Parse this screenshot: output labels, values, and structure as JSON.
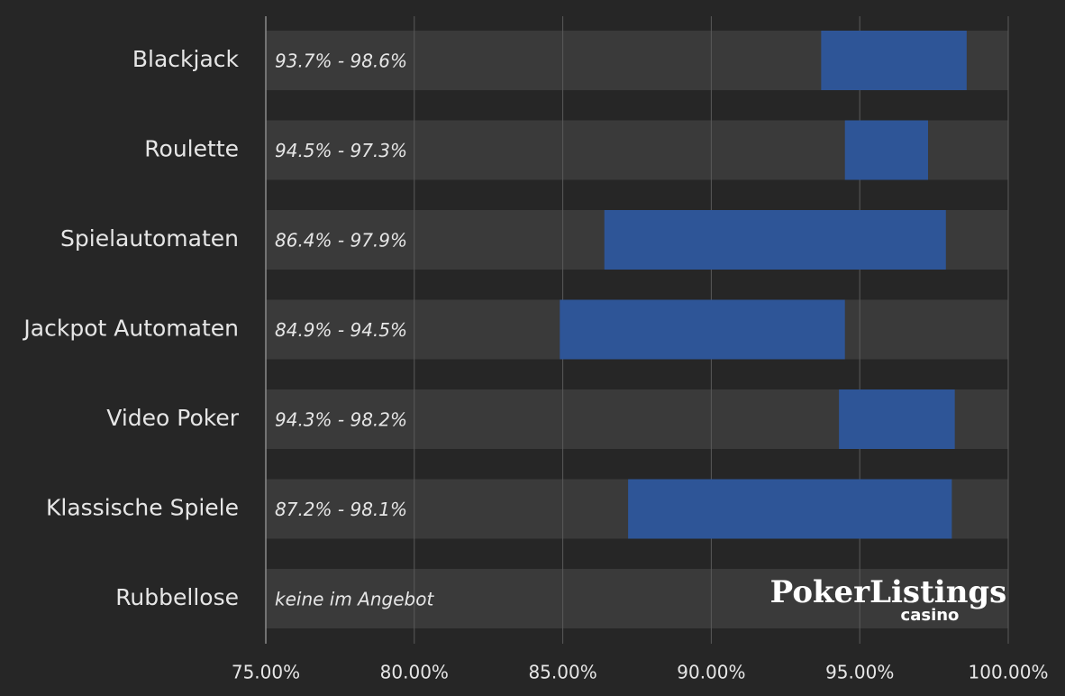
{
  "chart_data": {
    "type": "range-bar",
    "categories": [
      "Blackjack",
      "Roulette",
      "Spielautomaten",
      "Jackpot Automaten",
      "Video Poker",
      "Klassische Spiele",
      "Rubbellose"
    ],
    "low": [
      93.7,
      94.5,
      86.4,
      84.9,
      94.3,
      87.2,
      null
    ],
    "high": [
      98.6,
      97.3,
      97.9,
      94.5,
      98.2,
      98.1,
      null
    ],
    "range_labels": [
      "93.7% - 98.6%",
      "94.5% - 97.3%",
      "86.4% - 97.9%",
      "84.9% - 94.5%",
      "94.3% - 98.2%",
      "87.2% - 98.1%",
      "keine im Angebot"
    ],
    "color": "#2e5597",
    "xlim": [
      75,
      100
    ],
    "xticks": [
      {
        "value": 75,
        "label": "75.00%"
      },
      {
        "value": 80,
        "label": "80.00%"
      },
      {
        "value": 85,
        "label": "85.00%"
      },
      {
        "value": 90,
        "label": "90.00%"
      },
      {
        "value": 95,
        "label": "95.00%"
      },
      {
        "value": 100,
        "label": "100.00%"
      }
    ],
    "grid": true,
    "watermark": {
      "text": "PokerListings",
      "subtext": "casino"
    }
  }
}
